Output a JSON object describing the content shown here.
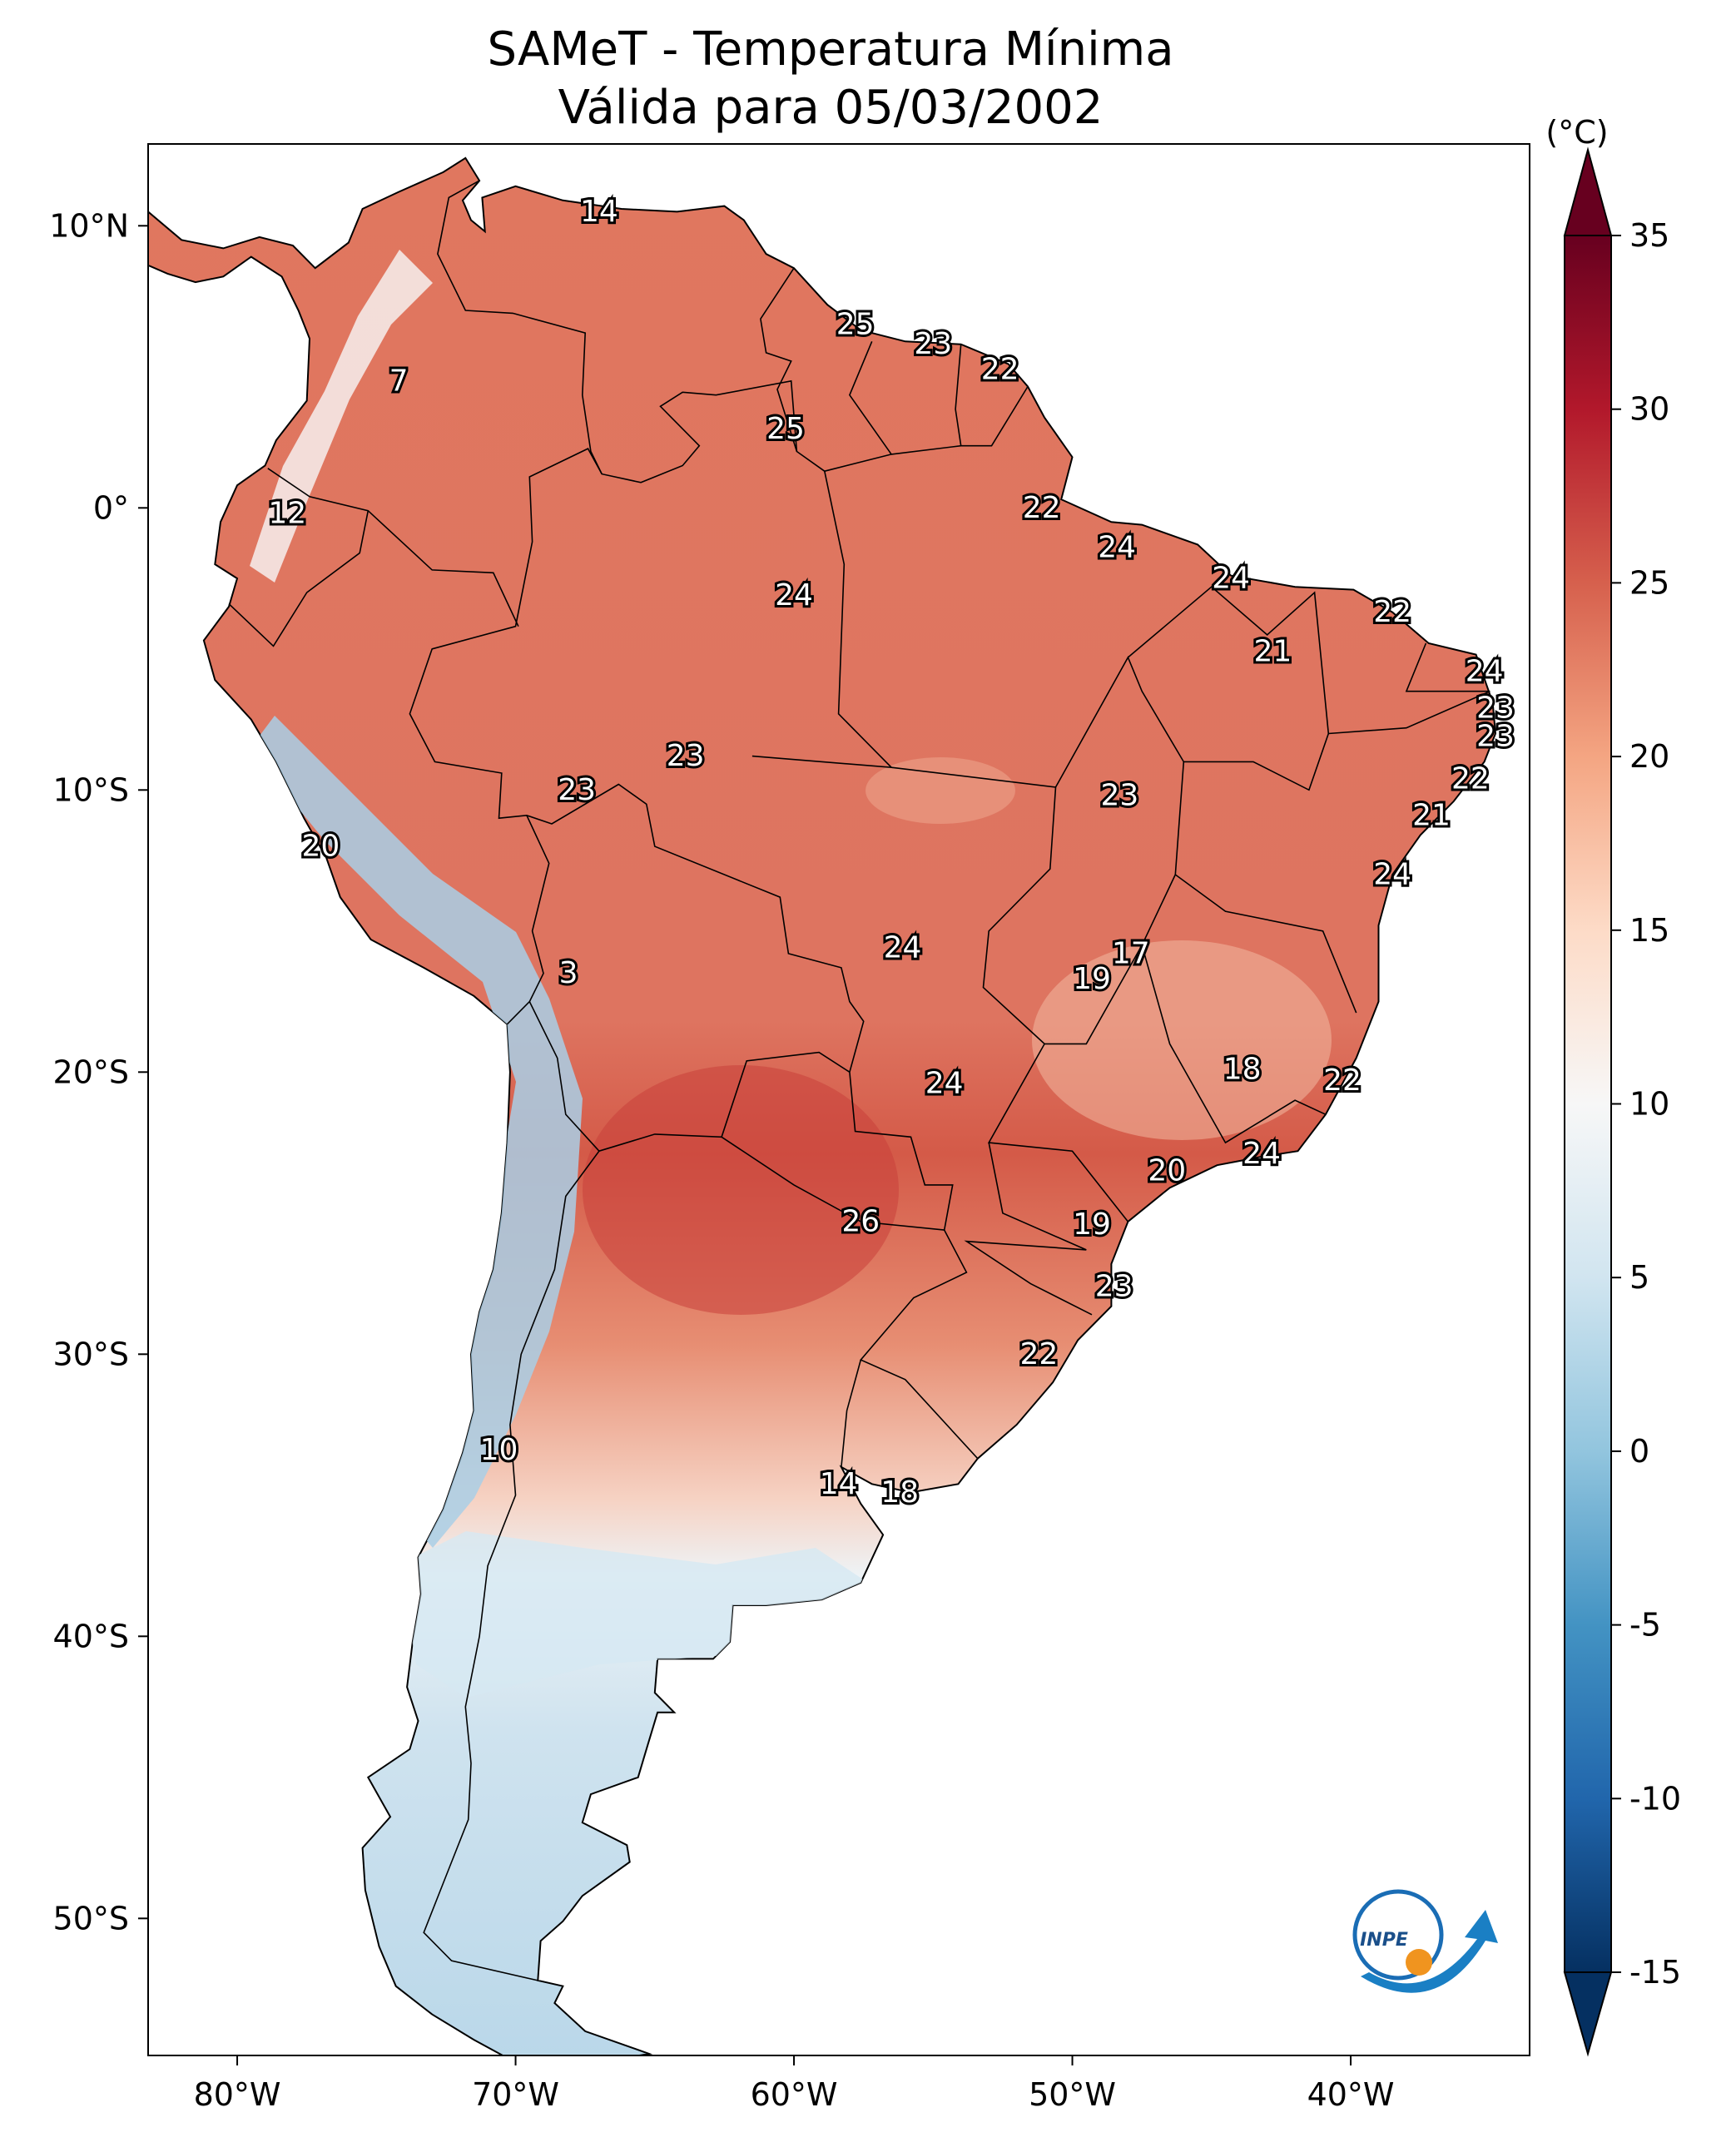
{
  "title_line1": "SAMeT - Temperatura Mínima",
  "title_line2": "Válida para 05/03/2002",
  "colorbar": {
    "unit": "(°C)",
    "ticks": [
      "35",
      "30",
      "25",
      "20",
      "15",
      "10",
      "5",
      "0",
      "-5",
      "-10",
      "-15"
    ],
    "min": -15,
    "max": 35,
    "colors": [
      "#053061",
      "#2166ac",
      "#4393c3",
      "#92c5de",
      "#d1e5f0",
      "#f7f7f7",
      "#fddbc7",
      "#f4a582",
      "#d6604d",
      "#b2182b",
      "#67001f"
    ]
  },
  "axes": {
    "lon_labels": [
      "80°W",
      "70°W",
      "60°W",
      "50°W",
      "40°W"
    ],
    "lat_labels": [
      "10°N",
      "0°",
      "10°S",
      "20°S",
      "30°S",
      "40°S",
      "50°S"
    ]
  },
  "colors": {
    "warm": "#e0775f",
    "hot": "#c9403a",
    "cool": "#f5c9b5",
    "cold": "#bcd9ea",
    "ocean": "#ffffff",
    "border": "#000000"
  },
  "logo": "INPE",
  "station_values": [
    {
      "lon": -67,
      "lat": 10.5,
      "text": "14"
    },
    {
      "lon": -57.8,
      "lat": 6.5,
      "text": "25"
    },
    {
      "lon": -55,
      "lat": 5.8,
      "text": "23"
    },
    {
      "lon": -52.6,
      "lat": 4.9,
      "text": "22"
    },
    {
      "lon": -74.2,
      "lat": 4.5,
      "text": "7"
    },
    {
      "lon": -60.3,
      "lat": 2.8,
      "text": "25"
    },
    {
      "lon": -51.1,
      "lat": 0.0,
      "text": "22"
    },
    {
      "lon": -78.2,
      "lat": -0.2,
      "text": "12"
    },
    {
      "lon": -48.4,
      "lat": -1.4,
      "text": "24"
    },
    {
      "lon": -44.3,
      "lat": -2.5,
      "text": "24"
    },
    {
      "lon": -60,
      "lat": -3.1,
      "text": "24"
    },
    {
      "lon": -38.5,
      "lat": -3.7,
      "text": "22"
    },
    {
      "lon": -42.8,
      "lat": -5.1,
      "text": "21"
    },
    {
      "lon": -35.2,
      "lat": -5.8,
      "text": "24"
    },
    {
      "lon": -34.8,
      "lat": -7.1,
      "text": "23"
    },
    {
      "lon": -34.8,
      "lat": -8.1,
      "text": "23"
    },
    {
      "lon": -63.9,
      "lat": -8.8,
      "text": "23"
    },
    {
      "lon": -35.7,
      "lat": -9.6,
      "text": "22"
    },
    {
      "lon": -67.8,
      "lat": -10.0,
      "text": "23"
    },
    {
      "lon": -48.3,
      "lat": -10.2,
      "text": "23"
    },
    {
      "lon": -37.1,
      "lat": -10.9,
      "text": "21"
    },
    {
      "lon": -77.0,
      "lat": -12.0,
      "text": "20"
    },
    {
      "lon": -38.5,
      "lat": -13.0,
      "text": "24"
    },
    {
      "lon": -56.1,
      "lat": -15.6,
      "text": "24"
    },
    {
      "lon": -47.9,
      "lat": -15.8,
      "text": "17"
    },
    {
      "lon": -49.3,
      "lat": -16.7,
      "text": "19"
    },
    {
      "lon": -68.1,
      "lat": -16.5,
      "text": "3"
    },
    {
      "lon": -43.9,
      "lat": -19.9,
      "text": "18"
    },
    {
      "lon": -40.3,
      "lat": -20.3,
      "text": "22"
    },
    {
      "lon": -54.6,
      "lat": -20.4,
      "text": "24"
    },
    {
      "lon": -43.2,
      "lat": -22.9,
      "text": "24"
    },
    {
      "lon": -46.6,
      "lat": -23.5,
      "text": "20"
    },
    {
      "lon": -57.6,
      "lat": -25.3,
      "text": "26"
    },
    {
      "lon": -49.3,
      "lat": -25.4,
      "text": "19"
    },
    {
      "lon": -48.5,
      "lat": -27.6,
      "text": "23"
    },
    {
      "lon": -51.2,
      "lat": -30.0,
      "text": "22"
    },
    {
      "lon": -70.6,
      "lat": -33.4,
      "text": "10"
    },
    {
      "lon": -58.4,
      "lat": -34.6,
      "text": "14"
    },
    {
      "lon": -56.2,
      "lat": -34.9,
      "text": "18"
    }
  ]
}
